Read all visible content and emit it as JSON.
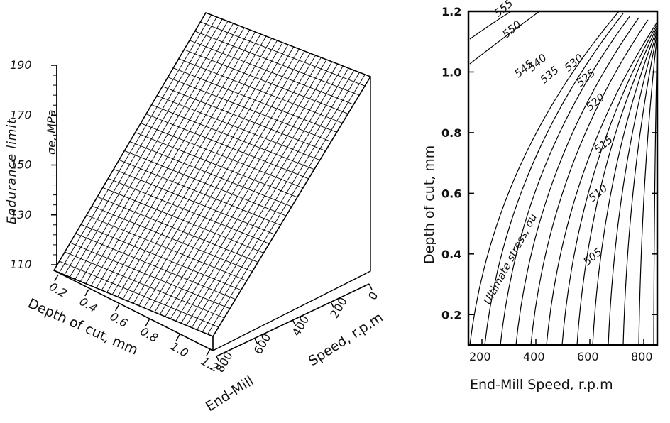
{
  "chart_data": [
    {
      "type": "surface3d",
      "title": "",
      "zlabel": "Endurance limit",
      "zlabel_symbol": "σe, MPa",
      "xlabel": "Depth of cut, mm",
      "ylabel_line1": "End-Mill",
      "ylabel_line2": "Speed, r.p.m",
      "x_ticks": [
        "0.2",
        "0.4",
        "0.6",
        "0.8",
        "1.0",
        "1.2"
      ],
      "y_ticks": [
        "800",
        "600",
        "400",
        "200",
        "0"
      ],
      "z_ticks": [
        "110",
        "130",
        "150",
        "170",
        "190"
      ],
      "zlim": [
        110,
        190
      ],
      "surface_corners": [
        {
          "depth": 0.2,
          "speed": 0,
          "endurance": 113
        },
        {
          "depth": 1.2,
          "speed": 0,
          "endurance": 113
        },
        {
          "depth": 0.2,
          "speed": 800,
          "endurance": 190
        },
        {
          "depth": 1.2,
          "speed": 800,
          "endurance": 190
        }
      ],
      "grid_columns": 28,
      "grid_rows": 30
    },
    {
      "type": "contour",
      "title": "",
      "xlabel": "End-Mill Speed, r.p.m",
      "ylabel": "Depth of cut, mm",
      "xlim": [
        150,
        850
      ],
      "ylim": [
        0.1,
        1.2
      ],
      "x_ticks": [
        "200",
        "400",
        "600",
        "800"
      ],
      "y_ticks": [
        "0.2",
        "0.4",
        "0.6",
        "0.8",
        "1.0",
        "1.2"
      ],
      "annotation": "Ultimate stress, σu",
      "contour_labels": [
        {
          "value": "555",
          "speed": 260,
          "depth": 1.18
        },
        {
          "value": "550",
          "speed": 290,
          "depth": 1.11
        },
        {
          "value": "545",
          "speed": 335,
          "depth": 0.98
        },
        {
          "value": "540",
          "speed": 385,
          "depth": 1.0
        },
        {
          "value": "535",
          "speed": 430,
          "depth": 0.96
        },
        {
          "value": "530",
          "speed": 520,
          "depth": 1.0
        },
        {
          "value": "525",
          "speed": 565,
          "depth": 0.95
        },
        {
          "value": "520",
          "speed": 600,
          "depth": 0.87
        },
        {
          "value": "515",
          "speed": 630,
          "depth": 0.73
        },
        {
          "value": "510",
          "speed": 610,
          "depth": 0.57
        },
        {
          "value": "505",
          "speed": 590,
          "depth": 0.36
        }
      ]
    }
  ]
}
